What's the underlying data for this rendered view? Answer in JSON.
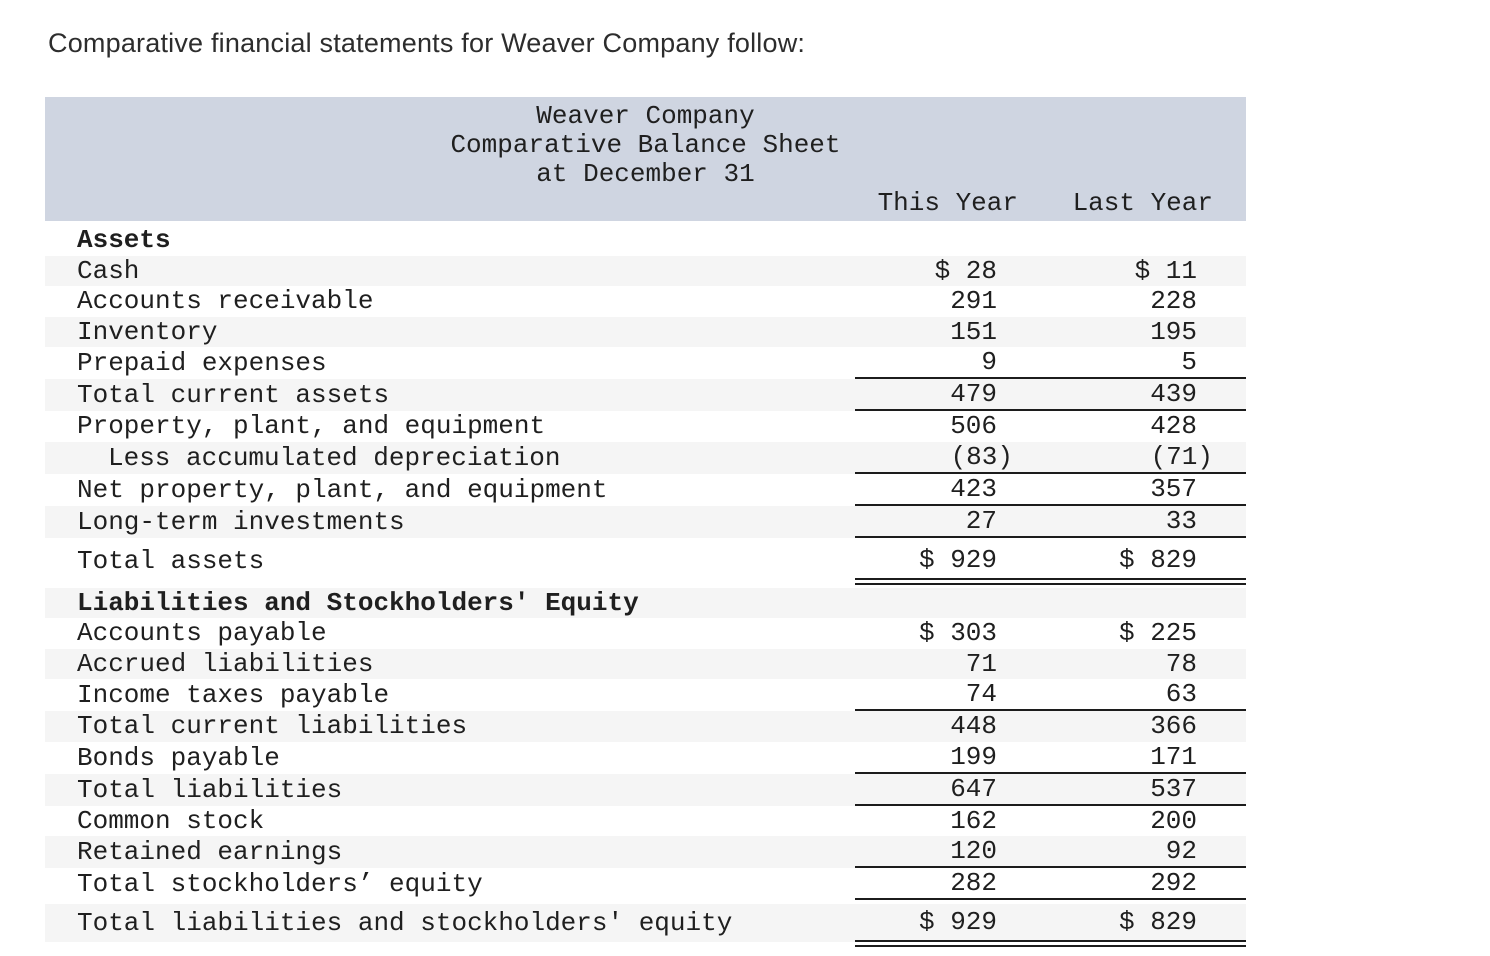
{
  "intro": "Comparative financial statements for Weaver Company follow:",
  "statement": {
    "title_lines": [
      "Weaver Company",
      "Comparative Balance Sheet",
      "at December 31"
    ],
    "columns": [
      "This Year",
      "Last Year"
    ],
    "rows": [
      {
        "label": "Assets",
        "this_year": "",
        "last_year": "",
        "section": true,
        "shaded": false
      },
      {
        "label": "Cash",
        "this_year": "$ 28",
        "last_year": "$ 11",
        "shaded": true
      },
      {
        "label": "Accounts receivable",
        "this_year": "291",
        "last_year": "228",
        "shaded": false
      },
      {
        "label": "Inventory",
        "this_year": "151",
        "last_year": "195",
        "shaded": true
      },
      {
        "label": "Prepaid expenses",
        "this_year": "9",
        "last_year": "5",
        "shaded": false,
        "rule": "single"
      },
      {
        "label": "Total current assets",
        "this_year": "479",
        "last_year": "439",
        "shaded": true,
        "rule": "single"
      },
      {
        "label": "Property, plant, and equipment",
        "this_year": "506",
        "last_year": "428",
        "shaded": false
      },
      {
        "label": "Less accumulated depreciation",
        "this_year": "(83)",
        "last_year": "(71)",
        "shaded": true,
        "indent": true,
        "rule": "single"
      },
      {
        "label": "Net property, plant, and equipment",
        "this_year": "423",
        "last_year": "357",
        "shaded": false,
        "rule": "single"
      },
      {
        "label": "Long-term investments",
        "this_year": "27",
        "last_year": "33",
        "shaded": true,
        "rule": "single"
      },
      {
        "label": "Total assets",
        "this_year": "$ 929",
        "last_year": "$ 829",
        "shaded": false,
        "rule": "double",
        "tall": true,
        "gap": "sm"
      },
      {
        "label": "Liabilities and Stockholders' Equity",
        "this_year": "",
        "last_year": "",
        "section": true,
        "shaded": true,
        "gap": "md"
      },
      {
        "label": "Accounts payable",
        "this_year": "$ 303",
        "last_year": "$ 225",
        "shaded": false
      },
      {
        "label": "Accrued liabilities",
        "this_year": "71",
        "last_year": "78",
        "shaded": true
      },
      {
        "label": "Income taxes payable",
        "this_year": "74",
        "last_year": "63",
        "shaded": false,
        "rule": "single"
      },
      {
        "label": "Total current liabilities",
        "this_year": "448",
        "last_year": "366",
        "shaded": true
      },
      {
        "label": "Bonds payable",
        "this_year": "199",
        "last_year": "171",
        "shaded": false,
        "rule": "single"
      },
      {
        "label": "Total liabilities",
        "this_year": "647",
        "last_year": "537",
        "shaded": true,
        "rule": "single"
      },
      {
        "label": "Common stock",
        "this_year": "162",
        "last_year": "200",
        "shaded": false
      },
      {
        "label": "Retained earnings",
        "this_year": "120",
        "last_year": "92",
        "shaded": true,
        "rule": "single"
      },
      {
        "label": "Total stockholders’ equity",
        "this_year": "282",
        "last_year": "292",
        "shaded": false,
        "rule": "single"
      },
      {
        "label": "Total liabilities and stockholders' equity",
        "this_year": "$ 929",
        "last_year": "$ 829",
        "shaded": true,
        "rule": "double",
        "tall": true,
        "gap": "sm"
      }
    ]
  },
  "colors": {
    "header_band": "#cfd5e1",
    "row_stripe": "#f5f5f5",
    "rule": "#1c1c1c",
    "text": "#1f1f1f",
    "intro_text": "#2d2d2d"
  }
}
